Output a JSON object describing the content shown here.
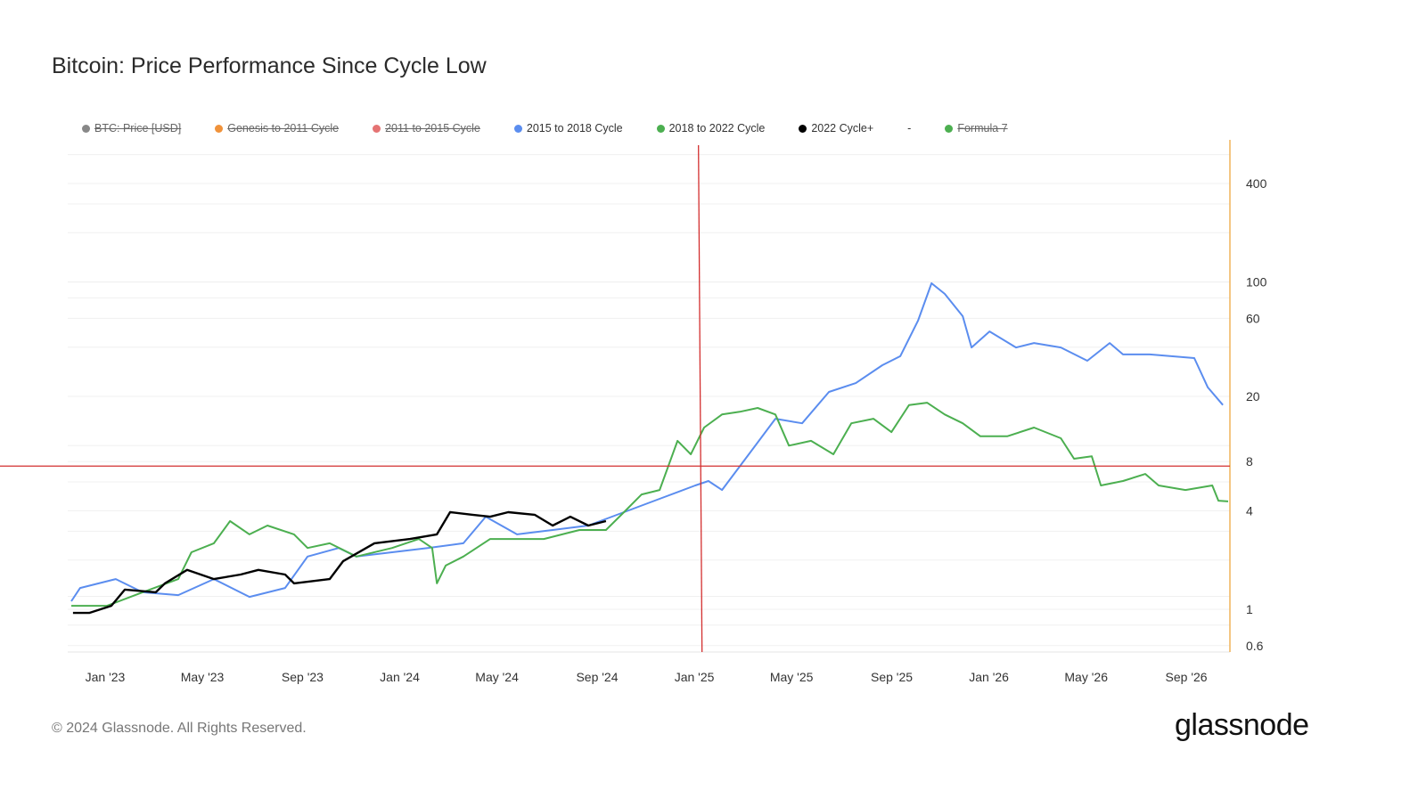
{
  "chart_data": {
    "type": "line",
    "title": "Bitcoin: Price Performance Since Cycle Low",
    "xlabel": "",
    "ylabel": "",
    "yscale": "log",
    "ylim": [
      0.5,
      700
    ],
    "xlim": [
      2022.873,
      2026.818
    ],
    "y_ticks": [
      400,
      100,
      60,
      20,
      8,
      4,
      1,
      0.6
    ],
    "x_ticks": [
      {
        "x": 2023.0,
        "label": "Jan '23"
      },
      {
        "x": 2023.33,
        "label": "May '23"
      },
      {
        "x": 2023.67,
        "label": "Sep '23"
      },
      {
        "x": 2024.0,
        "label": "Jan '24"
      },
      {
        "x": 2024.33,
        "label": "May '24"
      },
      {
        "x": 2024.67,
        "label": "Sep '24"
      },
      {
        "x": 2025.0,
        "label": "Jan '25"
      },
      {
        "x": 2025.33,
        "label": "May '25"
      },
      {
        "x": 2025.67,
        "label": "Sep '25"
      },
      {
        "x": 2026.0,
        "label": "Jan '26"
      },
      {
        "x": 2026.33,
        "label": "May '26"
      },
      {
        "x": 2026.67,
        "label": "Sep '26"
      }
    ],
    "grid": true,
    "legend_position": "top",
    "legend": [
      {
        "name": "BTC: Price [USD]",
        "color": "#888888",
        "enabled": false
      },
      {
        "name": "Genesis to 2011 Cycle",
        "color": "#f0923a",
        "enabled": false
      },
      {
        "name": "2011 to 2015 Cycle",
        "color": "#e57373",
        "enabled": false
      },
      {
        "name": "2015 to 2018 Cycle",
        "color": "#5b8def",
        "enabled": true
      },
      {
        "name": "2018 to 2022 Cycle",
        "color": "#4caf50",
        "enabled": true
      },
      {
        "name": "2022 Cycle+",
        "color": "#000000",
        "enabled": true
      },
      {
        "name": "-",
        "color": "",
        "enabled": true
      },
      {
        "name": "Formula 7",
        "color": "#4caf50",
        "enabled": false
      }
    ],
    "series": [
      {
        "name": "2015 to 2018 Cycle",
        "color": "#5b8def",
        "x": [
          2022.885,
          2022.915,
          2023.036,
          2023.127,
          2023.248,
          2023.369,
          2023.49,
          2023.611,
          2023.687,
          2023.793,
          2023.853,
          2023.974,
          2024.095,
          2024.216,
          2024.292,
          2024.398,
          2024.519,
          2024.64,
          2024.761,
          2024.882,
          2025.003,
          2025.048,
          2025.094,
          2025.185,
          2025.275,
          2025.366,
          2025.457,
          2025.548,
          2025.638,
          2025.699,
          2025.759,
          2025.805,
          2025.85,
          2025.911,
          2025.941,
          2026.002,
          2026.092,
          2026.153,
          2026.244,
          2026.334,
          2026.41,
          2026.455,
          2026.546,
          2026.697,
          2026.743,
          2026.794
        ],
        "values": [
          1.12,
          1.35,
          1.53,
          1.27,
          1.22,
          1.53,
          1.19,
          1.35,
          2.1,
          2.37,
          2.1,
          2.23,
          2.37,
          2.53,
          3.68,
          2.87,
          3.05,
          3.25,
          3.92,
          4.73,
          5.71,
          6.08,
          5.36,
          8.85,
          14.6,
          13.7,
          21.3,
          24.1,
          31.0,
          35.2,
          58.0,
          98.3,
          84.6,
          61.8,
          39.8,
          49.9,
          39.8,
          42.4,
          39.8,
          33.0,
          42.4,
          36.1,
          36.1,
          34.3,
          22.7,
          17.7
        ]
      },
      {
        "name": "2018 to 2022 Cycle",
        "color": "#4caf50",
        "x": [
          2022.885,
          2023.006,
          2023.127,
          2023.248,
          2023.293,
          2023.369,
          2023.424,
          2023.49,
          2023.551,
          2023.641,
          2023.687,
          2023.762,
          2023.853,
          2023.974,
          2024.065,
          2024.11,
          2024.126,
          2024.156,
          2024.216,
          2024.307,
          2024.398,
          2024.489,
          2024.61,
          2024.7,
          2024.761,
          2024.821,
          2024.882,
          2024.943,
          2024.988,
          2025.033,
          2025.094,
          2025.154,
          2025.215,
          2025.275,
          2025.321,
          2025.396,
          2025.472,
          2025.533,
          2025.608,
          2025.669,
          2025.729,
          2025.79,
          2025.85,
          2025.911,
          2025.971,
          2026.062,
          2026.153,
          2026.244,
          2026.289,
          2026.349,
          2026.38,
          2026.455,
          2026.531,
          2026.576,
          2026.667,
          2026.758,
          2026.779,
          2026.812
        ],
        "values": [
          1.05,
          1.05,
          1.27,
          1.53,
          2.23,
          2.53,
          3.46,
          2.87,
          3.25,
          2.87,
          2.37,
          2.53,
          2.1,
          2.37,
          2.69,
          2.37,
          1.44,
          1.85,
          2.1,
          2.69,
          2.69,
          2.69,
          3.05,
          3.05,
          3.92,
          5.03,
          5.36,
          10.7,
          8.85,
          12.9,
          15.5,
          16.1,
          17.0,
          15.5,
          10.0,
          10.7,
          8.85,
          13.7,
          14.6,
          12.1,
          17.7,
          18.3,
          15.5,
          13.7,
          11.4,
          11.4,
          12.9,
          11.1,
          8.32,
          8.6,
          5.71,
          6.08,
          6.71,
          5.71,
          5.36,
          5.71,
          4.61,
          4.56
        ]
      },
      {
        "name": "2022 Cycle+",
        "color": "#000000",
        "x": [
          2022.891,
          2022.946,
          2023.021,
          2023.067,
          2023.172,
          2023.203,
          2023.278,
          2023.369,
          2023.46,
          2023.52,
          2023.611,
          2023.641,
          2023.762,
          2023.808,
          2023.914,
          2024.035,
          2024.126,
          2024.171,
          2024.247,
          2024.307,
          2024.368,
          2024.458,
          2024.519,
          2024.579,
          2024.64,
          2024.7
        ],
        "values": [
          0.95,
          0.95,
          1.05,
          1.32,
          1.27,
          1.44,
          1.74,
          1.53,
          1.63,
          1.74,
          1.63,
          1.44,
          1.53,
          1.97,
          2.53,
          2.69,
          2.87,
          3.92,
          3.78,
          3.68,
          3.92,
          3.78,
          3.25,
          3.68,
          3.25,
          3.46
        ]
      }
    ],
    "annotations": {
      "crosshair_x": 2025.02,
      "crosshair_y": 7.5,
      "crosshair_color": "#d32f2f"
    }
  },
  "footer": {
    "copyright": "© 2024 Glassnode. All Rights Reserved.",
    "logo": "glassnode"
  }
}
